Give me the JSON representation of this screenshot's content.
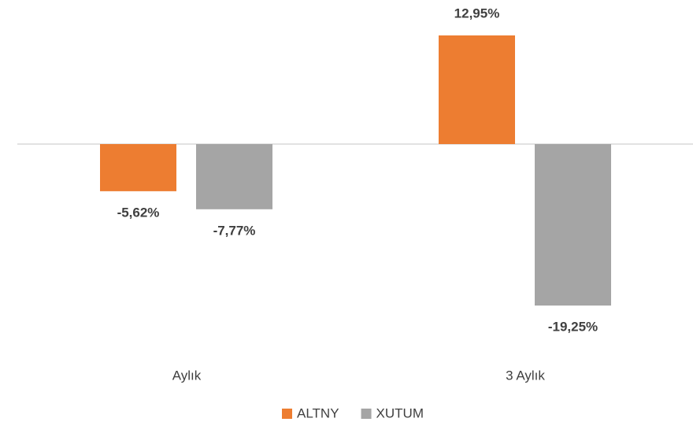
{
  "chart_data": {
    "type": "bar",
    "categories": [
      "Aylık",
      "3 Aylık"
    ],
    "series": [
      {
        "name": "ALTNY",
        "color": "#ed7d31",
        "values": [
          -5.62,
          12.95
        ],
        "value_labels": [
          "-5,62%",
          "12,95%"
        ]
      },
      {
        "name": "XUTUM",
        "color": "#a5a5a5",
        "values": [
          -7.77,
          -19.25
        ],
        "value_labels": [
          "-7,77%",
          "-19,25%"
        ]
      }
    ]
  }
}
